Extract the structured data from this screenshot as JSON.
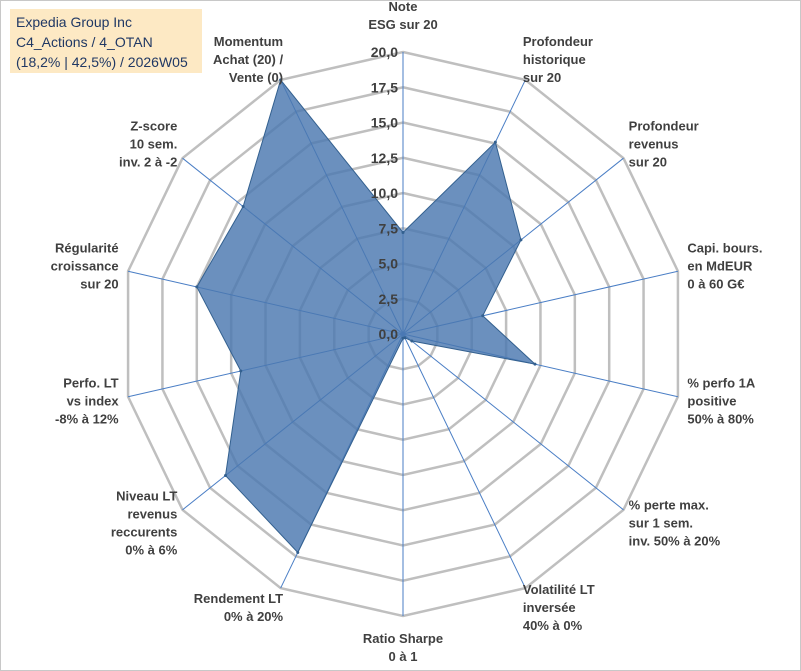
{
  "info": {
    "line1": "Expedia Group Inc",
    "line2": "C4_Actions / 4_OTAN",
    "line3": "(18,2% | 42,5%) / 2026W05"
  },
  "chart_data": {
    "type": "radar",
    "title": "",
    "rmin": 0,
    "rmax": 20,
    "tick_step": 2.5,
    "tick_labels": [
      "0,0",
      "2,5",
      "5,0",
      "7,5",
      "10,0",
      "12,5",
      "15,0",
      "17,5",
      "20,0"
    ],
    "categories": [
      [
        "Note",
        "ESG sur 20"
      ],
      [
        "Profondeur",
        "historique",
        "sur 20"
      ],
      [
        "Profondeur",
        "revenus",
        "sur 20"
      ],
      [
        "Capi. bours.",
        "en MdEUR",
        "0 à 60 G€"
      ],
      [
        "% perfo 1A",
        "positive",
        "50% à 80%"
      ],
      [
        "% perte max.",
        "sur 1 sem.",
        "inv. 50% à 20%"
      ],
      [
        "Volatilité LT",
        "inversée",
        "40% à 0%"
      ],
      [
        "Ratio Sharpe",
        "0 à 1"
      ],
      [
        "Rendement LT",
        "0% à 20%"
      ],
      [
        "Niveau LT",
        "revenus",
        "reccurents",
        "0% à 6%"
      ],
      [
        "Perfo. LT",
        "vs index",
        "-8% à 12%"
      ],
      [
        "Régularité",
        "croissance",
        "sur 20"
      ],
      [
        "Z-score",
        "10 sem.",
        "inv. 2 à -2"
      ],
      [
        "Momentum",
        "Achat (20) /",
        "Vente (0)"
      ]
    ],
    "series": [
      {
        "name": "Expedia Group Inc",
        "values": [
          7.2,
          15.1,
          10.7,
          5.8,
          9.6,
          0.8,
          0.3,
          0.3,
          17.2,
          16.1,
          11.8,
          15.0,
          14.5,
          20.0
        ]
      }
    ],
    "colors": {
      "fill": "#4a78b0",
      "stroke": "#33608f",
      "grid": "#bfbfbf",
      "spoke": "#4a7ec5"
    }
  }
}
